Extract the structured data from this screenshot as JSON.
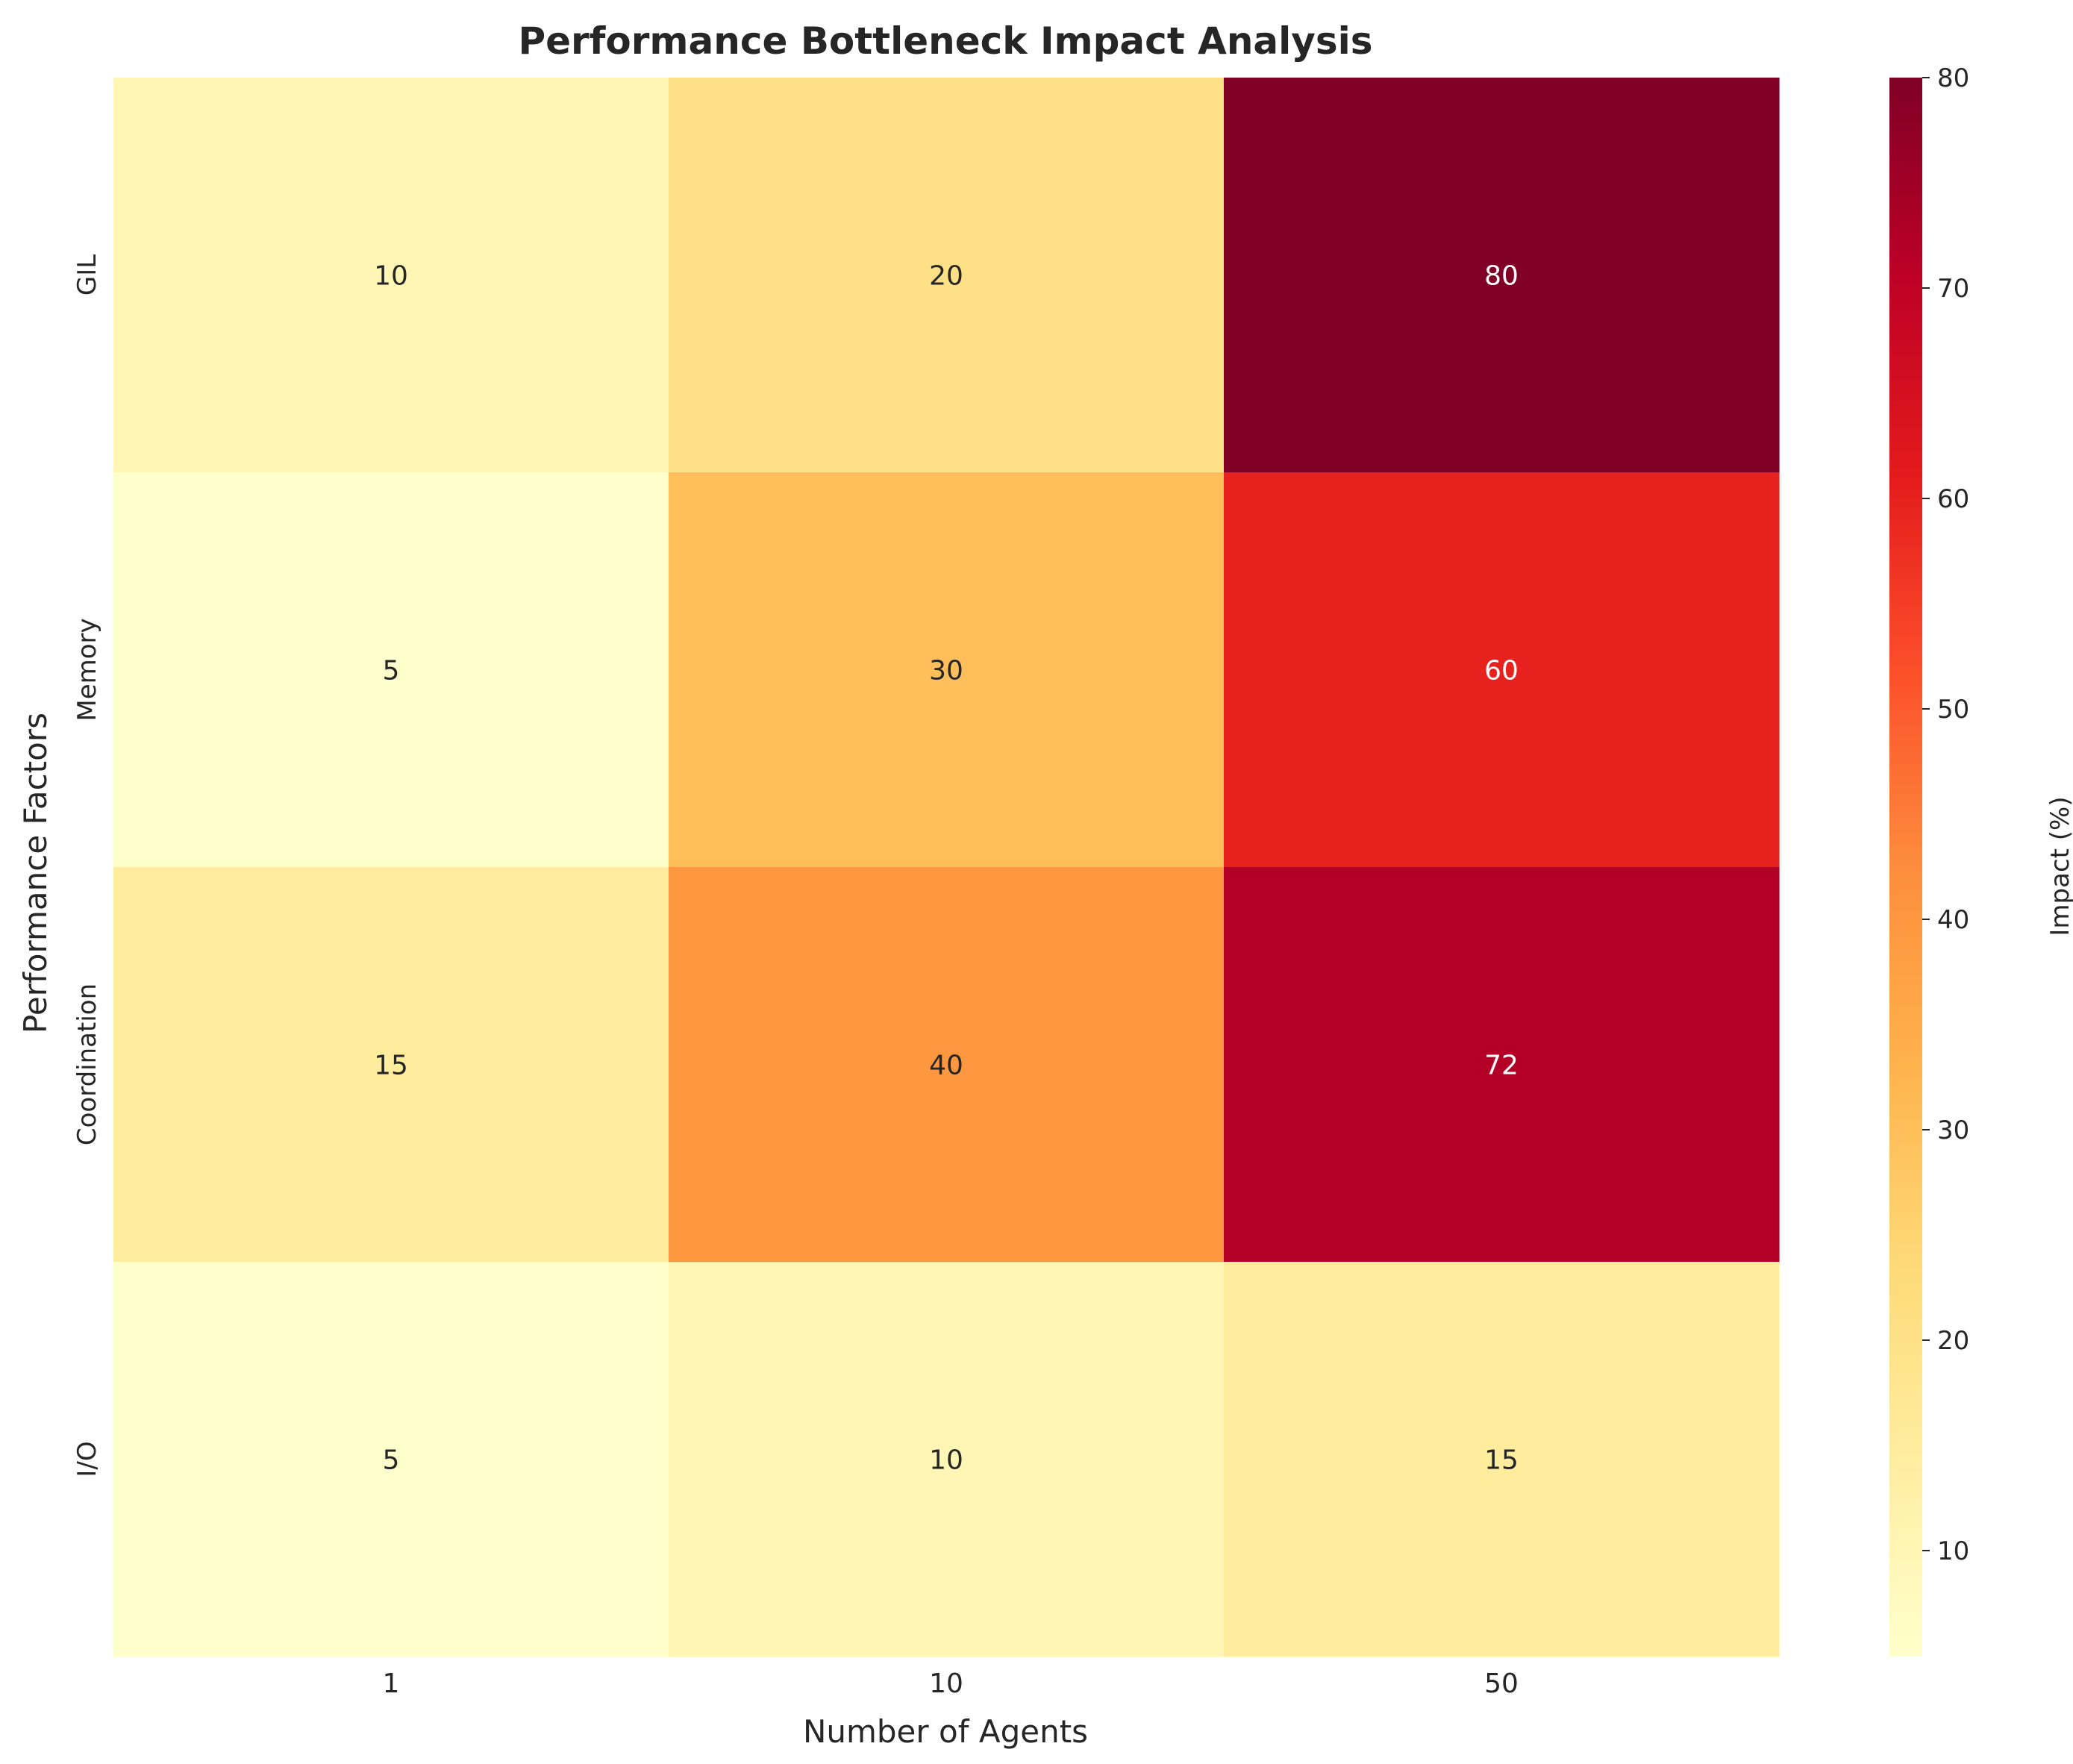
{
  "chart_data": {
    "type": "heatmap",
    "title": "Performance Bottleneck Impact Analysis",
    "xlabel": "Number of Agents",
    "ylabel": "Performance Factors",
    "x_categories": [
      "1",
      "10",
      "50"
    ],
    "y_categories": [
      "GIL",
      "Memory",
      "Coordination",
      "I/O"
    ],
    "values": [
      [
        10,
        20,
        80
      ],
      [
        5,
        30,
        60
      ],
      [
        15,
        40,
        72
      ],
      [
        5,
        10,
        15
      ]
    ],
    "colorbar": {
      "label": "Impact (%)",
      "range": [
        5,
        80
      ],
      "ticks": [
        10,
        20,
        30,
        40,
        50,
        60,
        70,
        80
      ],
      "colormap": "YlOrRd"
    }
  }
}
